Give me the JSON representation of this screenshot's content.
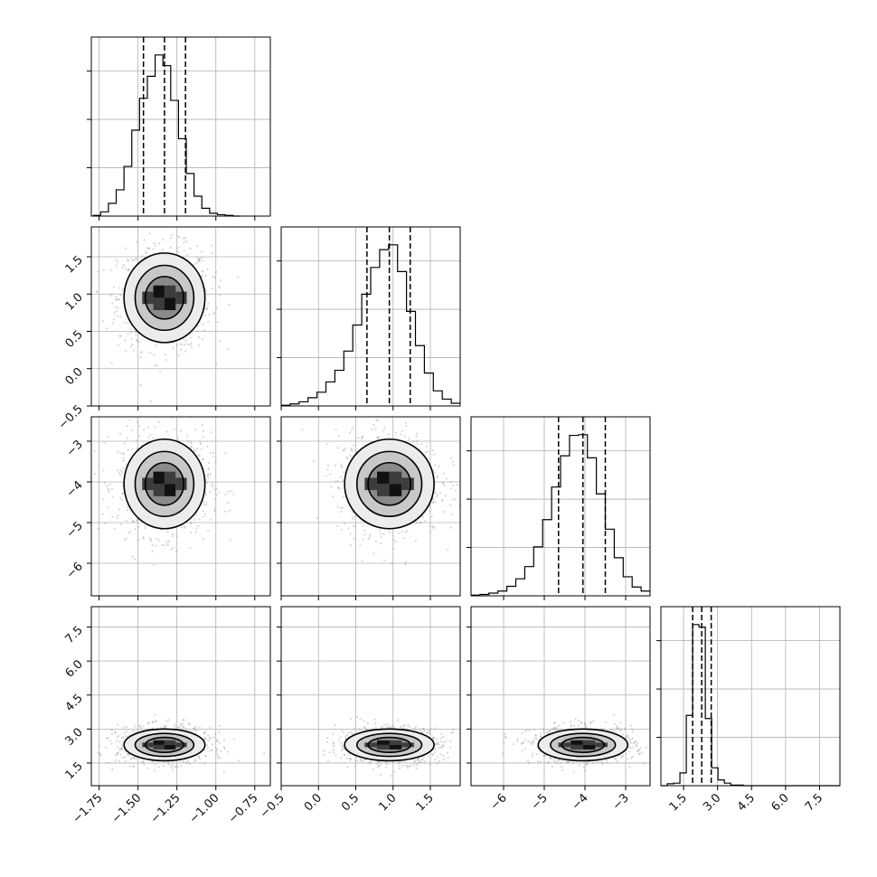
{
  "chart_data": {
    "type": "corner",
    "parameters": 4,
    "colors": {
      "line": "#000000",
      "grid": "#b0b0b0",
      "scatter": "#8c8c8c",
      "density_dark": "#111111"
    },
    "grid": true,
    "axes": [
      {
        "lim": [
          -1.8,
          -0.65
        ],
        "ticks": [
          -1.75,
          -1.5,
          -1.25,
          -1.0,
          -0.75
        ],
        "tick_labels": [
          "−1.75",
          "−1.50",
          "−1.25",
          "−1.00",
          "−0.75"
        ]
      },
      {
        "lim": [
          -0.5,
          1.9
        ],
        "ticks": [
          -0.5,
          0.0,
          0.5,
          1.0,
          1.5
        ],
        "tick_labels": [
          "−0.5",
          "0.0",
          "0.5",
          "1.0",
          "1.5"
        ]
      },
      {
        "lim": [
          -6.8,
          -2.4
        ],
        "ticks": [
          -6,
          -5,
          -4,
          -3
        ],
        "tick_labels": [
          "−6",
          "−5",
          "−4",
          "−3"
        ]
      },
      {
        "lim": [
          0.5,
          8.4
        ],
        "ticks": [
          1.5,
          3.0,
          4.5,
          6.0,
          7.5
        ],
        "tick_labels": [
          "1.5",
          "3.0",
          "4.5",
          "6.0",
          "7.5"
        ]
      }
    ],
    "marginals": [
      {
        "bins": [
          -1.79,
          -1.74,
          -1.69,
          -1.64,
          -1.59,
          -1.54,
          -1.49,
          -1.44,
          -1.39,
          -1.34,
          -1.29,
          -1.24,
          -1.19,
          -1.14,
          -1.09,
          -1.04,
          -0.99,
          -0.94,
          -0.89,
          -0.84
        ],
        "counts": [
          1,
          6,
          18,
          37,
          70,
          121,
          166,
          197,
          227,
          212,
          163,
          109,
          60,
          28,
          11,
          4,
          2,
          1,
          0
        ],
        "quantiles": [
          -1.465,
          -1.33,
          -1.195
        ]
      },
      {
        "bins": [
          -0.5,
          -0.38,
          -0.26,
          -0.14,
          -0.02,
          0.1,
          0.22,
          0.34,
          0.46,
          0.58,
          0.7,
          0.82,
          0.94,
          1.06,
          1.18,
          1.3,
          1.42,
          1.54,
          1.66,
          1.78,
          1.9
        ],
        "counts": [
          1,
          3,
          6,
          12,
          20,
          35,
          52,
          80,
          118,
          163,
          202,
          228,
          235,
          196,
          138,
          88,
          48,
          22,
          10,
          4
        ],
        "quantiles": [
          0.65,
          0.95,
          1.23
        ]
      },
      {
        "bins": [
          -6.8,
          -6.58,
          -6.36,
          -6.14,
          -5.92,
          -5.7,
          -5.48,
          -5.26,
          -5.04,
          -4.82,
          -4.6,
          -4.38,
          -4.16,
          -3.94,
          -3.72,
          -3.5,
          -3.28,
          -3.06,
          -2.84,
          -2.62,
          -2.4
        ],
        "counts": [
          1,
          2,
          4,
          7,
          14,
          25,
          43,
          72,
          112,
          160,
          206,
          236,
          237,
          203,
          150,
          98,
          56,
          28,
          13,
          7
        ],
        "quantiles": [
          -4.65,
          -4.05,
          -3.5
        ]
      },
      {
        "bins": [
          0.5,
          0.78,
          1.06,
          1.34,
          1.62,
          1.9,
          2.18,
          2.46,
          2.74,
          3.02,
          3.3,
          3.58,
          3.86,
          4.14,
          4.42,
          4.7,
          5.0,
          8.4
        ],
        "counts": [
          0,
          3,
          4,
          20,
          110,
          252,
          248,
          105,
          28,
          9,
          4,
          1,
          1,
          0,
          0,
          0,
          0
        ],
        "quantiles": [
          1.9,
          2.3,
          2.72
        ]
      }
    ],
    "joint": [
      {
        "row": 1,
        "col": 0,
        "center": [
          -1.33,
          0.95
        ],
        "sigma": [
          0.13,
          0.3
        ]
      },
      {
        "row": 2,
        "col": 0,
        "center": [
          -1.33,
          -4.05
        ],
        "sigma": [
          0.13,
          0.55
        ]
      },
      {
        "row": 2,
        "col": 1,
        "center": [
          0.95,
          -4.05
        ],
        "sigma": [
          0.3,
          0.55
        ]
      },
      {
        "row": 3,
        "col": 0,
        "center": [
          -1.33,
          2.3
        ],
        "sigma": [
          0.13,
          0.35
        ]
      },
      {
        "row": 3,
        "col": 1,
        "center": [
          0.95,
          2.3
        ],
        "sigma": [
          0.3,
          0.35
        ]
      },
      {
        "row": 3,
        "col": 2,
        "center": [
          -4.05,
          2.3
        ],
        "sigma": [
          0.55,
          0.35
        ]
      }
    ]
  }
}
